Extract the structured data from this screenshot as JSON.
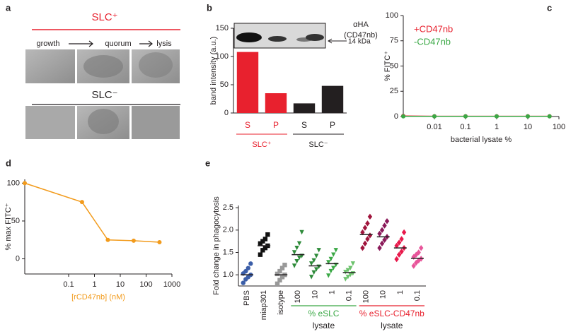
{
  "panel_a": {
    "label": "a",
    "top_group": "SLC⁺",
    "stages": [
      "growth",
      "quorum",
      "lysis"
    ],
    "bottom_group": "SLC⁻"
  },
  "chart_data": [
    {
      "panel": "b",
      "type": "bar",
      "ylabel": "band intensity (a.u.)",
      "categories": [
        "S",
        "P",
        "S",
        "P"
      ],
      "values": [
        108,
        35,
        17,
        48
      ],
      "colors": [
        "#e8212e",
        "#e8212e",
        "#231f20",
        "#231f20"
      ],
      "ylim": [
        0,
        150
      ],
      "yticks": [
        0,
        50,
        100,
        150
      ],
      "groups": [
        {
          "label": "SLC⁺",
          "color": "#e8212e"
        },
        {
          "label": "SLC⁻",
          "color": "#231f20"
        }
      ],
      "blot_label": [
        "αHA",
        "(CD47nb)"
      ],
      "marker_label": "14 kDa"
    },
    {
      "panel": "c",
      "type": "line",
      "xscale": "log",
      "xlabel": "bacterial lysate %",
      "ylabel": "% FITC⁺",
      "x": [
        0.001,
        0.01,
        0.1,
        1,
        10,
        50
      ],
      "series": [
        {
          "name": "+CD47nb",
          "color": "#e8212e",
          "values": [
            0.5,
            0.3,
            0.3,
            0.3,
            0.3,
            0.3
          ]
        },
        {
          "name": "-CD47nb",
          "color": "#3aa845",
          "values": [
            0.2,
            0.2,
            0.2,
            0.2,
            0.2,
            0.2
          ]
        }
      ],
      "legend": "top-left",
      "xlim": [
        0.001,
        100
      ],
      "xticks": [
        0.01,
        0.1,
        1,
        10,
        100
      ],
      "ylim": [
        0,
        100
      ],
      "yticks": [
        0,
        25,
        50,
        75,
        100
      ]
    },
    {
      "panel": "d",
      "type": "line",
      "xscale": "log",
      "xlabel": "[rCD47nb] (nM)",
      "ylabel": "% max FITC⁺",
      "x": [
        0.002,
        0.33,
        3.3,
        33,
        330
      ],
      "series": [
        {
          "color": "#f29b1c",
          "values": [
            100,
            75,
            25,
            24,
            22
          ]
        }
      ],
      "xlim": [
        0.002,
        1000
      ],
      "xticks": [
        0.1,
        1,
        10,
        100,
        1000
      ],
      "ylim": [
        -20,
        105
      ],
      "yticks": [
        0,
        50,
        100
      ]
    },
    {
      "panel": "e",
      "type": "strip",
      "ylabel": "Fold change in phagocytosis",
      "ylim": [
        0.75,
        2.55
      ],
      "yticks": [
        {
          "value": 1,
          "label": "1.0"
        },
        {
          "value": 1.5,
          "label": "1.5"
        },
        {
          "value": 2,
          "label": "2.0"
        },
        {
          "value": 2.5,
          "label": "2.5"
        }
      ],
      "groups": [
        {
          "label": "PBS",
          "color": "#3b5ea8",
          "marker": "circle",
          "mean": 1.0,
          "values": [
            0.82,
            0.9,
            0.95,
            1.0,
            1.03,
            1.08,
            1.15,
            1.25
          ]
        },
        {
          "label": "miap301",
          "color": "#111111",
          "marker": "square",
          "mean": 1.65,
          "values": [
            1.45,
            1.55,
            1.6,
            1.65,
            1.7,
            1.75,
            1.8,
            1.9
          ]
        },
        {
          "label": "isotype",
          "color": "#999999",
          "marker": "square",
          "mean": 1.0,
          "values": [
            0.8,
            0.88,
            0.95,
            1.0,
            1.02,
            1.08,
            1.15,
            1.22
          ]
        },
        {
          "label": "100",
          "color": "#2e8b3a",
          "marker": "triangle",
          "mean": 1.45,
          "values": [
            1.2,
            1.3,
            1.38,
            1.42,
            1.5,
            1.6,
            1.7,
            1.95
          ]
        },
        {
          "label": "10",
          "color": "#2e8b3a",
          "marker": "triangle",
          "mean": 1.2,
          "values": [
            0.95,
            1.05,
            1.12,
            1.18,
            1.25,
            1.32,
            1.42,
            1.55
          ]
        },
        {
          "label": "1",
          "color": "#3aa845",
          "marker": "triangle",
          "mean": 1.25,
          "values": [
            0.98,
            1.08,
            1.15,
            1.22,
            1.28,
            1.35,
            1.45,
            1.55
          ]
        },
        {
          "label": "0.1",
          "color": "#6cc26c",
          "marker": "triangle",
          "mean": 1.05,
          "values": [
            0.9,
            0.95,
            1.0,
            1.03,
            1.06,
            1.1,
            1.15,
            1.25
          ]
        },
        {
          "label": "100",
          "color": "#a0143c",
          "marker": "diamond",
          "mean": 1.9,
          "values": [
            1.6,
            1.7,
            1.8,
            1.88,
            1.95,
            2.05,
            2.15,
            2.3
          ]
        },
        {
          "label": "10",
          "color": "#8b1a5a",
          "marker": "diamond",
          "mean": 1.85,
          "values": [
            1.6,
            1.7,
            1.78,
            1.85,
            1.92,
            2.0,
            2.1,
            2.2
          ]
        },
        {
          "label": "1",
          "color": "#e8194b",
          "marker": "diamond",
          "mean": 1.6,
          "values": [
            1.35,
            1.45,
            1.52,
            1.6,
            1.65,
            1.72,
            1.8,
            1.95
          ]
        },
        {
          "label": "0.1",
          "color": "#e8559a",
          "marker": "diamond",
          "mean": 1.37,
          "values": [
            1.2,
            1.27,
            1.32,
            1.36,
            1.4,
            1.45,
            1.5,
            1.6
          ]
        }
      ],
      "treatments": [
        {
          "label": [
            "% eSLC",
            "lysate"
          ],
          "color": "#3aa845"
        },
        {
          "label": [
            "% eSLC-CD47nb",
            "lysate"
          ],
          "color": "#e8212e"
        }
      ]
    }
  ]
}
